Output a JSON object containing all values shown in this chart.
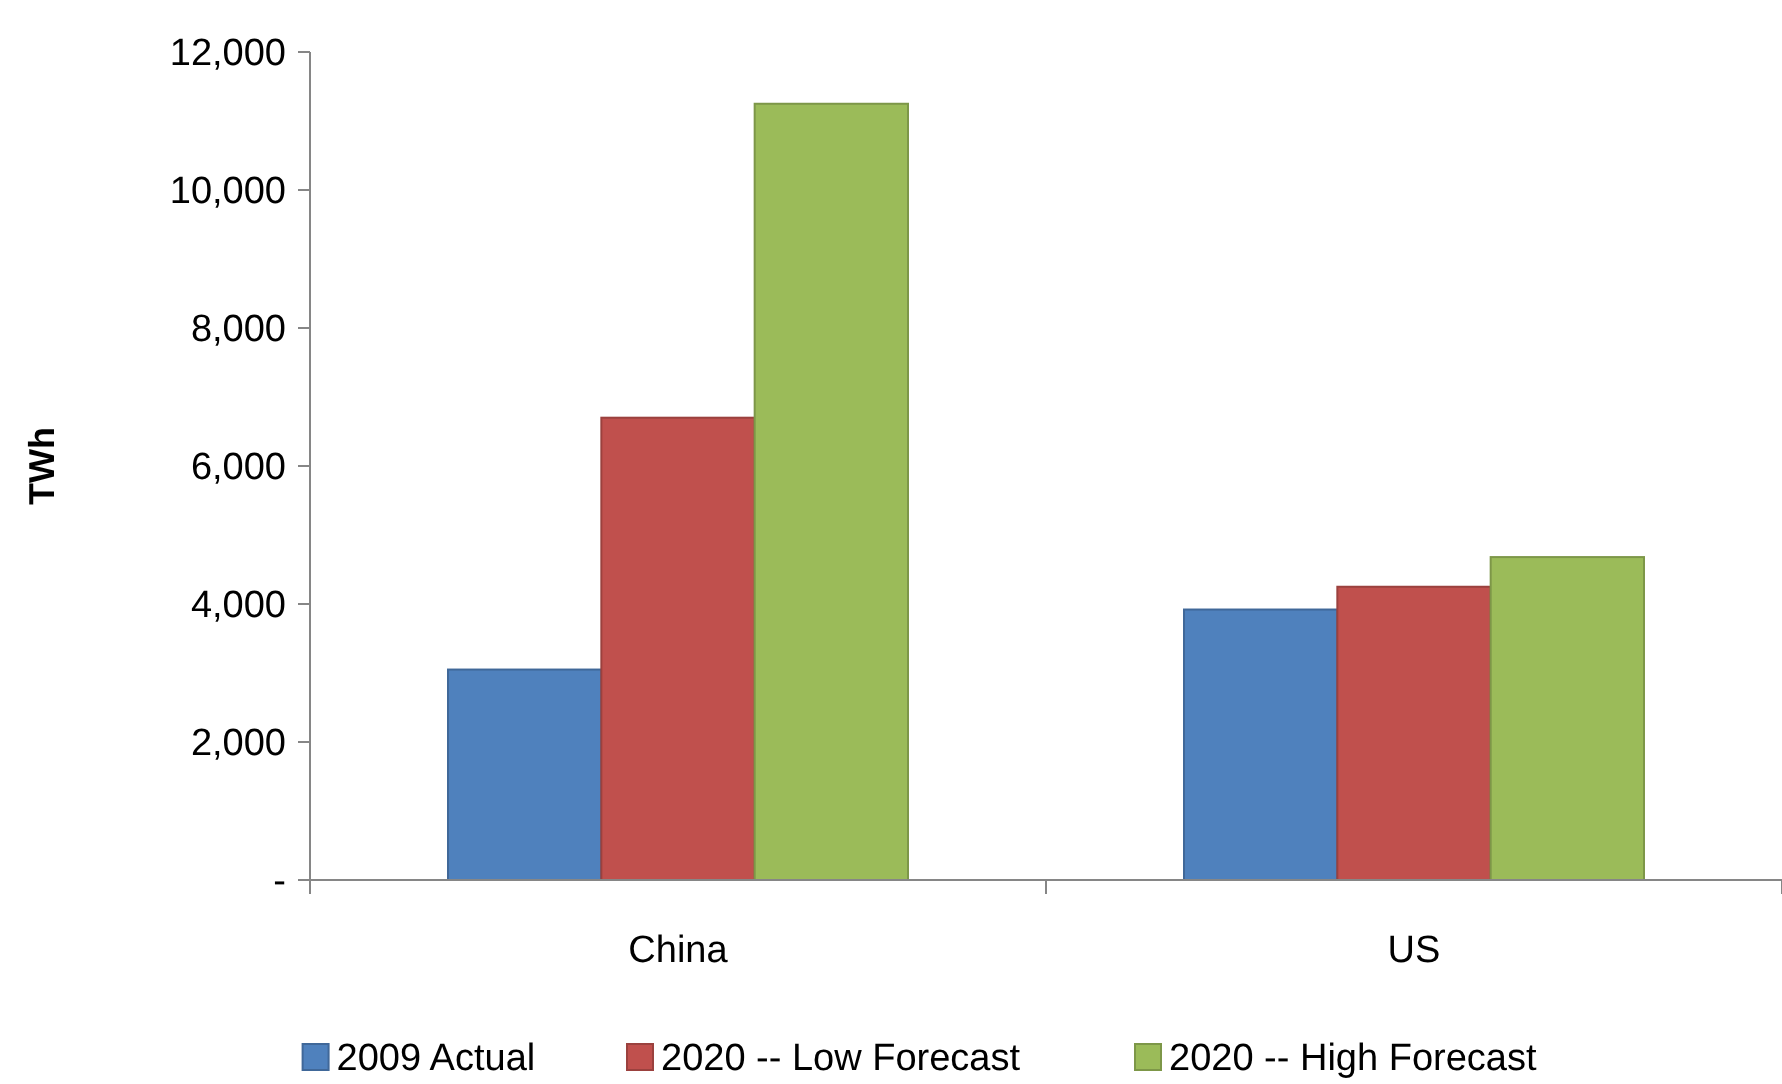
{
  "chart_data": {
    "type": "bar",
    "ylabel": "TWh",
    "categories": [
      "China",
      "US"
    ],
    "series": [
      {
        "name": "2009 Actual",
        "color": "#4f81bd",
        "values": [
          3050,
          3920
        ]
      },
      {
        "name": "2020 -- Low Forecast",
        "color": "#c0504d",
        "values": [
          6700,
          4250
        ]
      },
      {
        "name": "2020 -- High Forecast",
        "color": "#9bbb59",
        "values": [
          11250,
          4680
        ]
      }
    ],
    "ylim": [
      0,
      12000
    ],
    "yticks": [
      {
        "value": 0,
        "label": "-"
      },
      {
        "value": 2000,
        "label": "2,000"
      },
      {
        "value": 4000,
        "label": "4,000"
      },
      {
        "value": 6000,
        "label": "6,000"
      },
      {
        "value": 8000,
        "label": "8,000"
      },
      {
        "value": 10000,
        "label": "10,000"
      },
      {
        "value": 12000,
        "label": "12,000"
      }
    ],
    "grid": false,
    "legend": "bottom"
  }
}
